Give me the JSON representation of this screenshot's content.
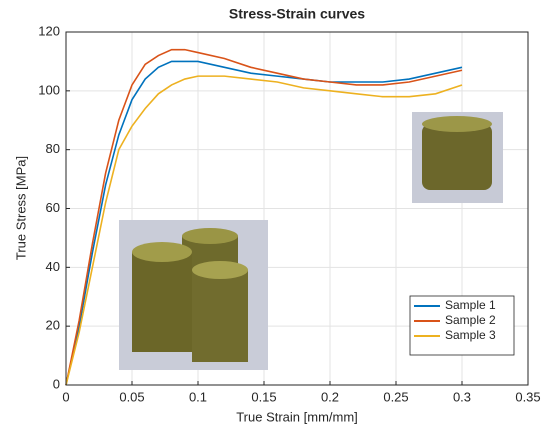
{
  "chart_data": {
    "type": "line",
    "title": "Stress-Strain curves",
    "x_label": "True Strain [mm/mm]",
    "y_label": "True Stress [MPa]",
    "x": [
      0,
      0.01,
      0.02,
      0.03,
      0.04,
      0.05,
      0.06,
      0.07,
      0.08,
      0.09,
      0.1,
      0.12,
      0.14,
      0.16,
      0.18,
      0.2,
      0.22,
      0.24,
      0.26,
      0.28,
      0.3
    ],
    "series": [
      {
        "name": "Sample 1",
        "color": "#0072bd",
        "values": [
          0,
          20,
          45,
          68,
          85,
          97,
          104,
          108,
          110,
          110,
          110,
          108,
          106,
          105,
          104,
          103,
          103,
          103,
          104,
          106,
          108
        ]
      },
      {
        "name": "Sample 2",
        "color": "#d95319",
        "values": [
          0,
          22,
          48,
          72,
          90,
          102,
          109,
          112,
          114,
          114,
          113,
          111,
          108,
          106,
          104,
          103,
          102,
          102,
          103,
          105,
          107
        ]
      },
      {
        "name": "Sample 3",
        "color": "#edb120",
        "values": [
          0,
          18,
          40,
          62,
          80,
          88,
          94,
          99,
          102,
          104,
          105,
          105,
          104,
          103,
          101,
          100,
          99,
          98,
          98,
          99,
          102
        ]
      }
    ],
    "xlim": [
      0,
      0.35
    ],
    "xticks": [
      0,
      0.05,
      0.1,
      0.15,
      0.2,
      0.25,
      0.3,
      0.35
    ],
    "ylim": [
      0,
      120
    ],
    "yticks": [
      0,
      20,
      40,
      60,
      80,
      100,
      120
    ],
    "grid": true,
    "legend": "lower right"
  }
}
